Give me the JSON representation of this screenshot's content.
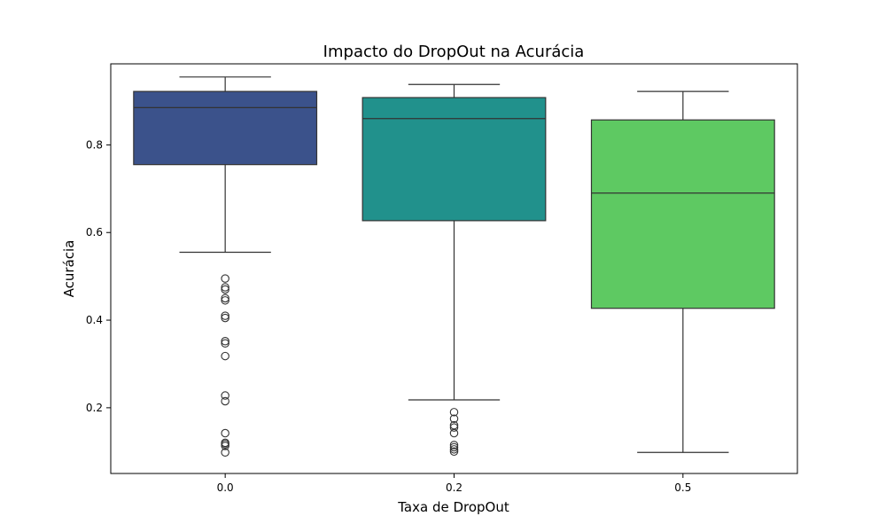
{
  "chart_data": {
    "type": "box",
    "title": "Impacto do DropOut na Acurácia",
    "xlabel": "Taxa de DropOut",
    "ylabel": "Acurácia",
    "ylim": [
      0.05,
      0.985
    ],
    "yticks": [
      "0.2",
      "0.4",
      "0.6",
      "0.8"
    ],
    "grid": false,
    "categories": [
      "0.0",
      "0.2",
      "0.5"
    ],
    "boxes": [
      {
        "category": "0.0",
        "color": "#3b528b",
        "whisker_low": 0.555,
        "q1": 0.755,
        "median": 0.885,
        "q3": 0.922,
        "whisker_high": 0.955,
        "outliers": [
          0.495,
          0.475,
          0.47,
          0.45,
          0.445,
          0.41,
          0.405,
          0.352,
          0.347,
          0.318,
          0.228,
          0.215,
          0.142,
          0.12,
          0.117,
          0.113,
          0.098
        ]
      },
      {
        "category": "0.2",
        "color": "#21918c",
        "whisker_low": 0.218,
        "q1": 0.627,
        "median": 0.86,
        "q3": 0.908,
        "whisker_high": 0.938,
        "outliers": [
          0.19,
          0.175,
          0.16,
          0.155,
          0.142,
          0.115,
          0.11,
          0.105,
          0.1
        ]
      },
      {
        "category": "0.5",
        "color": "#5ec962",
        "whisker_low": 0.098,
        "q1": 0.427,
        "median": 0.69,
        "q3": 0.857,
        "whisker_high": 0.922,
        "outliers": []
      }
    ]
  }
}
